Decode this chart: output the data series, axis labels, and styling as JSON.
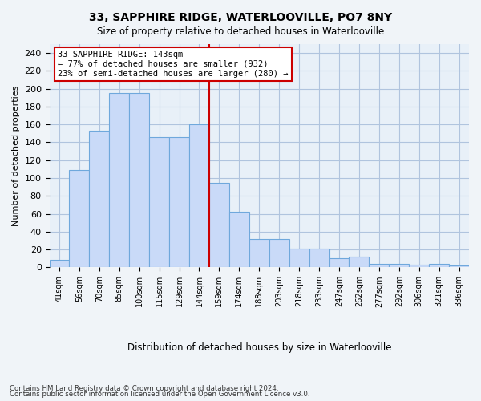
{
  "title1": "33, SAPPHIRE RIDGE, WATERLOOVILLE, PO7 8NY",
  "title2": "Size of property relative to detached houses in Waterlooville",
  "xlabel": "Distribution of detached houses by size in Waterlooville",
  "ylabel": "Number of detached properties",
  "categories": [
    "41sqm",
    "56sqm",
    "70sqm",
    "85sqm",
    "100sqm",
    "115sqm",
    "129sqm",
    "144sqm",
    "159sqm",
    "174sqm",
    "188sqm",
    "203sqm",
    "218sqm",
    "233sqm",
    "247sqm",
    "262sqm",
    "277sqm",
    "292sqm",
    "306sqm",
    "321sqm",
    "336sqm"
  ],
  "values": [
    8,
    109,
    153,
    195,
    195,
    146,
    146,
    160,
    95,
    62,
    32,
    32,
    21,
    21,
    10,
    12,
    4,
    4,
    3,
    4,
    2
  ],
  "bar_color": "#c9daf8",
  "bar_edge_color": "#6fa8dc",
  "vline_color": "#cc0000",
  "annotation_box_color": "#cc0000",
  "annotation_line1": "33 SAPPHIRE RIDGE: 143sqm",
  "annotation_line2": "← 77% of detached houses are smaller (932)",
  "annotation_line3": "23% of semi-detached houses are larger (280) →",
  "ylim": [
    0,
    250
  ],
  "yticks": [
    0,
    20,
    40,
    60,
    80,
    100,
    120,
    140,
    160,
    180,
    200,
    220,
    240
  ],
  "grid_color": "#b0c4de",
  "bg_color": "#e8f0f8",
  "fig_bg_color": "#f0f4f8",
  "footer1": "Contains HM Land Registry data © Crown copyright and database right 2024.",
  "footer2": "Contains public sector information licensed under the Open Government Licence v3.0."
}
